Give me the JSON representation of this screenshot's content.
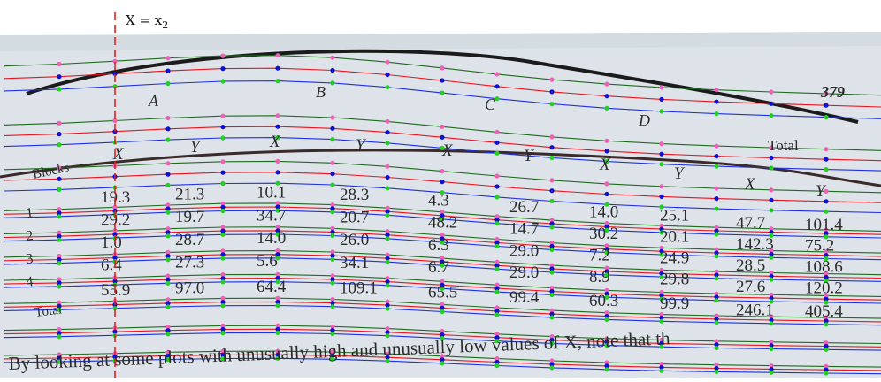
{
  "cursor": {
    "label": "X = x",
    "subscript": "2"
  },
  "page_number": "379",
  "table": {
    "groups": [
      "A",
      "B",
      "C",
      "D"
    ],
    "total_label": "Total",
    "col_headers": [
      "X",
      "Y",
      "X",
      "Y",
      "X",
      "Y",
      "X",
      "Y",
      "X",
      "Y"
    ],
    "row_header": "Blocks",
    "row_labels": [
      "1",
      "2",
      "3",
      "4",
      "Total"
    ],
    "rows": [
      [
        "19.3",
        "21.3",
        "10.1",
        "28.3",
        "4.3",
        "26.7",
        "14.0",
        "25.1",
        "47.7",
        "101.4"
      ],
      [
        "29.2",
        "19.7",
        "34.7",
        "20.7",
        "48.2",
        "14.7",
        "30.2",
        "20.1",
        "142.3",
        "75.2"
      ],
      [
        "1.0",
        "28.7",
        "14.0",
        "26.0",
        "6.3",
        "29.0",
        "7.2",
        "24.9",
        "28.5",
        "108.6"
      ],
      [
        "6.4",
        "27.3",
        "5.6",
        "34.1",
        "6.7",
        "29.0",
        "8.9",
        "29.8",
        "27.6",
        "120.2"
      ],
      [
        "55.9",
        "97.0",
        "64.4",
        "109.1",
        "65.5",
        "99.4",
        "60.3",
        "99.9",
        "246.1",
        "405.4"
      ]
    ]
  },
  "footer_text": "By looking at some plots with unusually high and unusually low values of X, note that th",
  "colors": {
    "cursor": "#e02020",
    "line_red": "#e8141e",
    "line_blue": "#1f2fe0",
    "line_green": "#1f6a1f",
    "dot_pink": "#f060b8",
    "dot_blue": "#1010d0",
    "dot_green": "#22d022"
  }
}
